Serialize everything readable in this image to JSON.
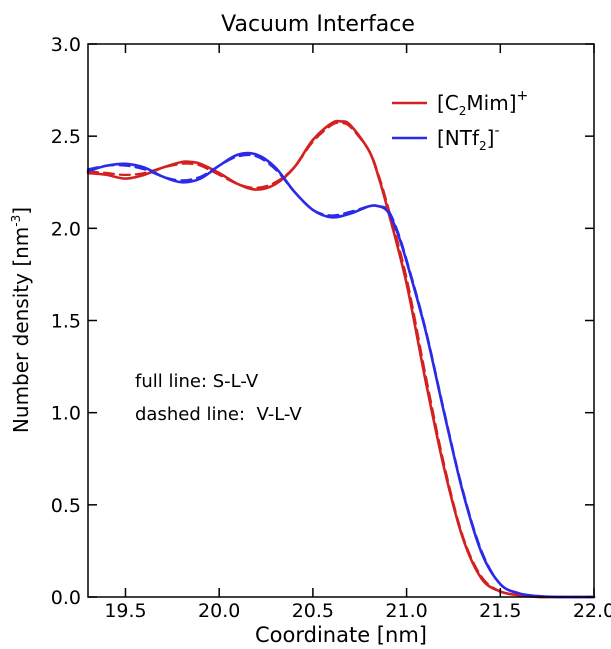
{
  "chart_data": {
    "type": "line",
    "title": "Vacuum Interface",
    "xlabel": "Coordinate [nm]",
    "ylabel": "Number density [nm",
    "ylabel_sup": "-3",
    "ylabel_close": "]",
    "xlim": [
      19.3,
      22.0
    ],
    "ylim": [
      0.0,
      3.0
    ],
    "xticks": [
      19.5,
      20.0,
      20.5,
      21.0,
      21.5,
      22.0
    ],
    "xtick_labels": [
      "19.5",
      "20.0",
      "20.5",
      "21.0",
      "21.5",
      "22.0"
    ],
    "yticks": [
      0.0,
      0.5,
      1.0,
      1.5,
      2.0,
      2.5,
      3.0
    ],
    "ytick_labels": [
      "0.0",
      "0.5",
      "1.0",
      "1.5",
      "2.0",
      "2.5",
      "3.0"
    ],
    "grid": false,
    "legend_position": "top-right",
    "annotations": [
      "full line: S-L-V",
      "dashed line:  V-L-V"
    ],
    "colors": {
      "cation": "#d42020",
      "anion": "#2a2ae8"
    },
    "series": [
      {
        "name": "[C2Mim]+",
        "legend_parts": [
          "[C",
          "2",
          "Mim]",
          "+"
        ],
        "color": "#d42020",
        "line": "solid",
        "x": [
          19.3,
          19.4,
          19.5,
          19.6,
          19.7,
          19.8,
          19.85,
          19.9,
          20.0,
          20.1,
          20.2,
          20.3,
          20.4,
          20.5,
          20.6,
          20.65,
          20.7,
          20.8,
          20.85,
          20.9,
          21.0,
          21.1,
          21.2,
          21.3,
          21.4,
          21.5,
          21.6,
          21.7,
          21.8,
          22.0
        ],
        "y": [
          2.3,
          2.29,
          2.27,
          2.29,
          2.33,
          2.36,
          2.36,
          2.35,
          2.3,
          2.24,
          2.21,
          2.24,
          2.33,
          2.48,
          2.57,
          2.58,
          2.56,
          2.42,
          2.28,
          2.1,
          1.7,
          1.18,
          0.7,
          0.32,
          0.1,
          0.03,
          0.01,
          0.0,
          0.0,
          0.0
        ]
      },
      {
        "name": "[C2Mim]+ (V-L-V)",
        "color": "#d42020",
        "line": "dashed",
        "x": [
          19.3,
          19.4,
          19.5,
          19.6,
          19.7,
          19.8,
          19.85,
          19.9,
          20.0,
          20.1,
          20.2,
          20.3,
          20.4,
          20.5,
          20.6,
          20.65,
          20.7,
          20.8,
          20.85,
          20.9,
          21.0,
          21.1,
          21.2,
          21.3,
          21.4,
          21.5,
          21.6,
          21.7,
          21.8,
          22.0
        ],
        "y": [
          2.31,
          2.3,
          2.29,
          2.3,
          2.33,
          2.35,
          2.35,
          2.34,
          2.29,
          2.24,
          2.22,
          2.25,
          2.33,
          2.47,
          2.56,
          2.57,
          2.55,
          2.42,
          2.29,
          2.12,
          1.73,
          1.21,
          0.72,
          0.33,
          0.11,
          0.03,
          0.01,
          0.0,
          0.0,
          0.0
        ]
      },
      {
        "name": "[NTf2]-",
        "legend_parts": [
          "[NTf",
          "2",
          "]",
          "-"
        ],
        "color": "#2a2ae8",
        "line": "solid",
        "x": [
          19.3,
          19.4,
          19.5,
          19.6,
          19.7,
          19.8,
          19.9,
          20.0,
          20.1,
          20.2,
          20.3,
          20.4,
          20.5,
          20.6,
          20.7,
          20.8,
          20.85,
          20.9,
          20.95,
          21.0,
          21.1,
          21.2,
          21.3,
          21.4,
          21.5,
          21.6,
          21.7,
          21.8,
          22.0
        ],
        "y": [
          2.31,
          2.34,
          2.35,
          2.33,
          2.28,
          2.25,
          2.27,
          2.34,
          2.4,
          2.4,
          2.33,
          2.2,
          2.1,
          2.06,
          2.08,
          2.12,
          2.12,
          2.09,
          1.98,
          1.82,
          1.45,
          1.0,
          0.57,
          0.24,
          0.07,
          0.02,
          0.005,
          0.0,
          0.0
        ]
      },
      {
        "name": "[NTf2]- (V-L-V)",
        "color": "#2a2ae8",
        "line": "dashed",
        "x": [
          19.3,
          19.4,
          19.5,
          19.6,
          19.7,
          19.8,
          19.9,
          20.0,
          20.1,
          20.2,
          20.3,
          20.4,
          20.5,
          20.6,
          20.7,
          20.8,
          20.85,
          20.9,
          20.95,
          21.0,
          21.1,
          21.2,
          21.3,
          21.4,
          21.5,
          21.6,
          21.7,
          21.8,
          22.0
        ],
        "y": [
          2.32,
          2.34,
          2.34,
          2.32,
          2.28,
          2.26,
          2.28,
          2.34,
          2.39,
          2.39,
          2.32,
          2.2,
          2.1,
          2.07,
          2.09,
          2.12,
          2.12,
          2.1,
          1.99,
          1.83,
          1.46,
          1.01,
          0.58,
          0.25,
          0.07,
          0.02,
          0.005,
          0.0,
          0.0
        ]
      }
    ]
  }
}
